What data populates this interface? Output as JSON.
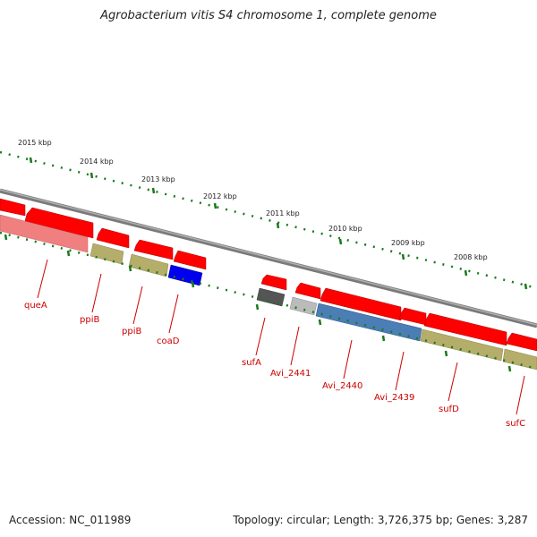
{
  "title": "Agrobacterium vitis S4 chromosome 1, complete genome",
  "footer": {
    "accession": "Accession: NC_011989",
    "summary": "Topology: circular; Length: 3,726,375 bp; Genes: 3,287"
  },
  "ruler_labels": [
    "2015 kbp",
    "2014 kbp",
    "2013 kbp",
    "2012 kbp",
    "2011 kbp",
    "2010 kbp",
    "2009 kbp",
    "2008 kbp"
  ],
  "gene_labels": [
    "queA",
    "ppiB",
    "ppiB",
    "coaD",
    "sufA",
    "Avi_2441",
    "Avi_2440",
    "Avi_2439",
    "sufD",
    "sufC"
  ],
  "colors": {
    "cds": "#ff0000",
    "backbone": "#808080",
    "ruler": "#1a7a1a",
    "label": "#cc0000",
    "salmon": "#f08080",
    "olive": "#b5ad6a",
    "blue": "#0000ee",
    "steel": "#4a7eb5",
    "darkgray": "#555555",
    "lightgray": "#bbbbbb"
  }
}
